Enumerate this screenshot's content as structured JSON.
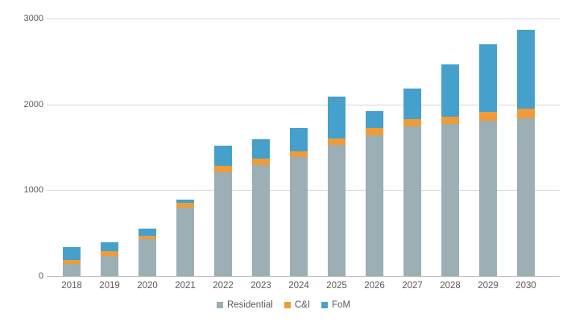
{
  "chart_data": {
    "type": "bar",
    "stacked": true,
    "title": "",
    "xlabel": "",
    "ylabel": "",
    "categories": [
      "2018",
      "2019",
      "2020",
      "2021",
      "2022",
      "2023",
      "2024",
      "2025",
      "2026",
      "2027",
      "2028",
      "2029",
      "2030"
    ],
    "series": [
      {
        "name": "Residential",
        "color": "#9bafb5",
        "values": [
          145,
          230,
          430,
          800,
          1205,
          1295,
          1385,
          1525,
          1645,
          1740,
          1770,
          1810,
          1840
        ]
      },
      {
        "name": "C&I",
        "color": "#ee9c3a",
        "values": [
          45,
          60,
          40,
          50,
          80,
          75,
          70,
          75,
          80,
          90,
          90,
          105,
          110
        ]
      },
      {
        "name": "FoM",
        "color": "#45a1cb",
        "values": [
          145,
          100,
          80,
          40,
          235,
          225,
          275,
          490,
          195,
          350,
          610,
          785,
          915
        ]
      }
    ],
    "ylim": [
      0,
      3000
    ],
    "yticks": [
      0,
      1000,
      2000,
      3000
    ],
    "grid": true,
    "legend_position": "bottom"
  },
  "colors": {
    "background": "#ffffff",
    "tick_text": "#595959",
    "gridline": "#d9d9d9",
    "axis_line": "#bfbfbf"
  }
}
